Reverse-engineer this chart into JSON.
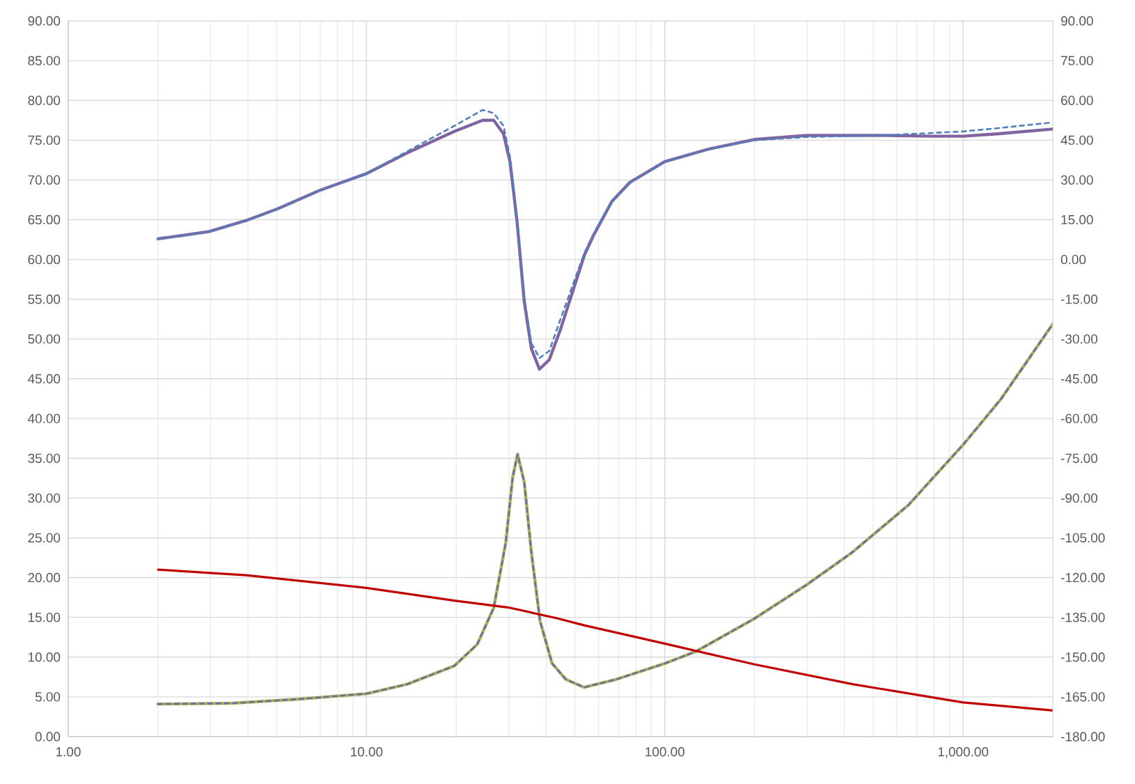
{
  "chart_data": {
    "type": "line",
    "log": "x",
    "grid": true,
    "xlim": [
      1,
      2000
    ],
    "xticks": [
      {
        "value": 1,
        "label": "1.00"
      },
      {
        "value": 10,
        "label": "10.00"
      },
      {
        "value": 100,
        "label": "100.00"
      },
      {
        "value": 1000,
        "label": "1,000.00"
      }
    ],
    "ylim": [
      0,
      90
    ],
    "yticks": [
      {
        "value": 0,
        "label": "0.00"
      },
      {
        "value": 5,
        "label": "5.00"
      },
      {
        "value": 10,
        "label": "10.00"
      },
      {
        "value": 15,
        "label": "15.00"
      },
      {
        "value": 20,
        "label": "20.00"
      },
      {
        "value": 25,
        "label": "25.00"
      },
      {
        "value": 30,
        "label": "30.00"
      },
      {
        "value": 35,
        "label": "35.00"
      },
      {
        "value": 40,
        "label": "40.00"
      },
      {
        "value": 45,
        "label": "45.00"
      },
      {
        "value": 50,
        "label": "50.00"
      },
      {
        "value": 55,
        "label": "55.00"
      },
      {
        "value": 60,
        "label": "60.00"
      },
      {
        "value": 65,
        "label": "65.00"
      },
      {
        "value": 70,
        "label": "70.00"
      },
      {
        "value": 75,
        "label": "75.00"
      },
      {
        "value": 80,
        "label": "80.00"
      },
      {
        "value": 85,
        "label": "85.00"
      },
      {
        "value": 90,
        "label": "90.00"
      }
    ],
    "y2lim": [
      -180,
      90
    ],
    "y2ticks": [
      {
        "value": -180,
        "label": "-180.00"
      },
      {
        "value": -165,
        "label": "-165.00"
      },
      {
        "value": -150,
        "label": "-150.00"
      },
      {
        "value": -135,
        "label": "-135.00"
      },
      {
        "value": -120,
        "label": "-120.00"
      },
      {
        "value": -105,
        "label": "-105.00"
      },
      {
        "value": -90,
        "label": "-90.00"
      },
      {
        "value": -75,
        "label": "-75.00"
      },
      {
        "value": -60,
        "label": "-60.00"
      },
      {
        "value": -45,
        "label": "-45.00"
      },
      {
        "value": -30,
        "label": "-30.00"
      },
      {
        "value": -15,
        "label": "-15.00"
      },
      {
        "value": 0,
        "label": "0.00"
      },
      {
        "value": 15,
        "label": "15.00"
      },
      {
        "value": 30,
        "label": "30.00"
      },
      {
        "value": 45,
        "label": "45.00"
      },
      {
        "value": 60,
        "label": "60.00"
      },
      {
        "value": 75,
        "label": "75.00"
      },
      {
        "value": 90,
        "label": "90.00"
      }
    ],
    "series": [
      {
        "color": "#9bbb59",
        "line_style": "solid",
        "x": [
          2,
          3.54,
          5.83,
          10,
          13.7,
          19.7,
          23.5,
          26.7,
          29.3,
          30.9,
          32.1,
          33.8,
          35.7,
          38.2,
          41.9,
          46.6,
          53.7,
          68.7,
          100,
          127,
          199,
          299,
          426,
          655,
          1000,
          1343,
          2000
        ],
        "values": [
          4.1,
          4.2,
          4.7,
          5.4,
          6.6,
          8.9,
          11.6,
          16.2,
          24.4,
          32.6,
          35.5,
          32,
          23.2,
          14.5,
          9.2,
          7.2,
          6.2,
          7.2,
          9.2,
          10.7,
          14.8,
          19.1,
          23.2,
          29.1,
          36.7,
          42.5,
          51.9
        ]
      },
      {
        "color": "#8064a2",
        "line_style": "dashed",
        "x": [
          2,
          3.54,
          5.83,
          10,
          13.7,
          19.7,
          23.5,
          26.7,
          29.3,
          30.9,
          32.1,
          33.8,
          35.7,
          38.2,
          41.9,
          46.6,
          53.7,
          68.7,
          100,
          127,
          199,
          299,
          426,
          655,
          1000,
          1343,
          2000
        ],
        "values": [
          4.1,
          4.2,
          4.7,
          5.4,
          6.6,
          8.9,
          11.6,
          16.2,
          24.4,
          32.6,
          35.5,
          32,
          23.2,
          14.5,
          9.2,
          7.2,
          6.2,
          7.2,
          9.2,
          10.7,
          14.8,
          19.1,
          23.2,
          29.1,
          36.7,
          42.5,
          51.9
        ]
      },
      {
        "color": "#c00000",
        "line_style": "solid",
        "x": [
          2,
          3.95,
          10,
          19.7,
          30.3,
          43.3,
          53.7,
          100,
          199,
          426,
          1000,
          2000
        ],
        "values": [
          21.0,
          20.3,
          18.7,
          17.1,
          16.2,
          14.9,
          14.0,
          11.7,
          9.1,
          6.6,
          4.3,
          3.3
        ]
      },
      {
        "color": "#8064a2",
        "line_style": "solid",
        "axis": "y2",
        "x": [
          2,
          2.96,
          3.95,
          5.06,
          6.98,
          10,
          13.7,
          19.7,
          24.5,
          26.7,
          28.8,
          30.3,
          32,
          33.8,
          35.7,
          38,
          41,
          44.7,
          53.7,
          57.8,
          66.5,
          76.4,
          100,
          141,
          201,
          299,
          528,
          785,
          1000,
          1300,
          2000
        ],
        "values": [
          7.8,
          10.5,
          14.7,
          19.2,
          26.1,
          32.4,
          40.2,
          48.3,
          52.5,
          52.5,
          47.4,
          36.6,
          13.8,
          -15.9,
          -33.6,
          -41.4,
          -37.8,
          -26.4,
          1.5,
          9.3,
          21.9,
          29.1,
          36.9,
          41.7,
          45.3,
          46.8,
          46.8,
          46.5,
          46.5,
          47.4,
          49.2
        ]
      },
      {
        "color": "#4f81bd",
        "line_style": "dashed",
        "axis": "y2",
        "x": [
          2,
          2.96,
          3.95,
          5.06,
          6.98,
          10,
          13.7,
          19.7,
          24.5,
          26.7,
          28.8,
          30.3,
          32,
          33.8,
          35.7,
          38,
          41,
          44.7,
          53.7,
          57.8,
          66.5,
          76.4,
          100,
          141,
          201,
          299,
          528,
          785,
          1000,
          1300,
          2000
        ],
        "values": [
          7.8,
          10.5,
          14.7,
          19.2,
          26.1,
          32.4,
          40.8,
          50.4,
          56.4,
          55.2,
          50.4,
          38.4,
          14.4,
          -14.4,
          -31.5,
          -37.2,
          -34.5,
          -22.5,
          2.4,
          9.9,
          21.9,
          29.1,
          36.9,
          41.7,
          45.0,
          46.2,
          46.8,
          47.7,
          48.3,
          49.5,
          51.7
        ]
      }
    ]
  }
}
